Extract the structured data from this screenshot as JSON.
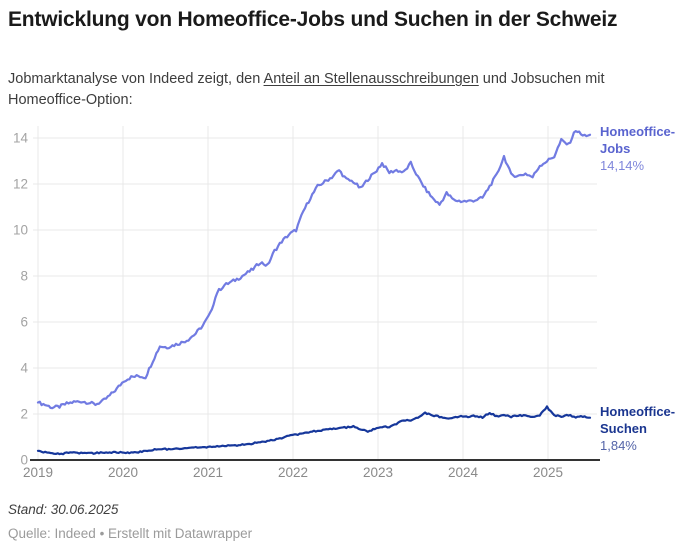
{
  "header": {
    "title": "Entwicklung von Homeoffice-Jobs und Suchen in der Schweiz",
    "subtitle_prefix": "Jobmarktanalyse von Indeed zeigt, den ",
    "subtitle_underlined": "Anteil an Stellenausschreibungen",
    "subtitle_suffix": " und Jobsuchen mit Homeoffice-Option:"
  },
  "footer": {
    "stand": "Stand: 30.06.2025",
    "quelle": "Quelle: Indeed • Erstellt mit Datawrapper"
  },
  "chart_data": {
    "type": "line",
    "title": "Entwicklung von Homeoffice-Jobs und Suchen in der Schweiz",
    "xlabel": "",
    "ylabel": "",
    "unit": "%",
    "grid": true,
    "legend_position": "right of line ends",
    "x_ticks": [
      "2019",
      "2020",
      "2021",
      "2022",
      "2023",
      "2024",
      "2025"
    ],
    "y_ticks": [
      0,
      2,
      4,
      6,
      8,
      10,
      12,
      14
    ],
    "ylim": [
      0,
      14.6
    ],
    "x_range": [
      "2019-01",
      "2025-06"
    ],
    "x_resolution": "monthly",
    "series": [
      {
        "name": "Homeoffice-Jobs",
        "end_value_label": "14,14%",
        "end_value": 14.14,
        "color": "#717be2",
        "label_color": "#5a64cf",
        "value_color": "#7f86db",
        "values": [
          2.5,
          2.4,
          2.28,
          2.32,
          2.45,
          2.52,
          2.55,
          2.5,
          2.42,
          2.55,
          2.8,
          3.1,
          3.45,
          3.6,
          3.65,
          3.6,
          4.3,
          4.95,
          4.9,
          5.0,
          5.1,
          5.25,
          5.5,
          5.85,
          6.35,
          7.3,
          7.6,
          7.75,
          7.9,
          8.1,
          8.3,
          8.6,
          8.45,
          9.1,
          9.5,
          9.8,
          10.0,
          10.8,
          11.4,
          11.9,
          12.1,
          12.3,
          12.6,
          12.2,
          12.1,
          11.8,
          12.2,
          12.5,
          12.9,
          12.5,
          12.6,
          12.5,
          12.9,
          12.3,
          11.8,
          11.4,
          11.1,
          11.6,
          11.3,
          11.25,
          11.25,
          11.3,
          11.4,
          11.9,
          12.4,
          13.2,
          12.4,
          12.35,
          12.45,
          12.3,
          12.8,
          13.0,
          13.2,
          13.9,
          13.7,
          14.35,
          14.1,
          14.14
        ]
      },
      {
        "name": "Homeoffice-Suchen",
        "end_value_label": "1,84%",
        "end_value": 1.84,
        "color": "#16379b",
        "label_color": "#1b3690",
        "value_color": "#5464a8",
        "values": [
          0.4,
          0.33,
          0.27,
          0.26,
          0.3,
          0.31,
          0.3,
          0.29,
          0.3,
          0.32,
          0.33,
          0.33,
          0.33,
          0.32,
          0.34,
          0.38,
          0.44,
          0.48,
          0.47,
          0.49,
          0.51,
          0.52,
          0.54,
          0.55,
          0.57,
          0.58,
          0.6,
          0.63,
          0.65,
          0.68,
          0.72,
          0.8,
          0.82,
          0.87,
          0.95,
          1.05,
          1.1,
          1.15,
          1.22,
          1.28,
          1.3,
          1.35,
          1.4,
          1.42,
          1.45,
          1.35,
          1.23,
          1.35,
          1.42,
          1.45,
          1.55,
          1.74,
          1.7,
          1.85,
          2.05,
          1.95,
          1.88,
          1.8,
          1.85,
          1.9,
          1.88,
          1.92,
          1.85,
          2.05,
          1.9,
          1.95,
          1.88,
          1.92,
          1.95,
          1.85,
          1.95,
          2.3,
          1.95,
          1.88,
          1.95,
          1.85,
          1.9,
          1.84
        ]
      }
    ],
    "axis_colors": {
      "gridline": "#e8e8e8",
      "baseline": "#333333",
      "y_tick_text": "#a3a3a3",
      "x_tick_text": "#8a8a8a"
    }
  }
}
